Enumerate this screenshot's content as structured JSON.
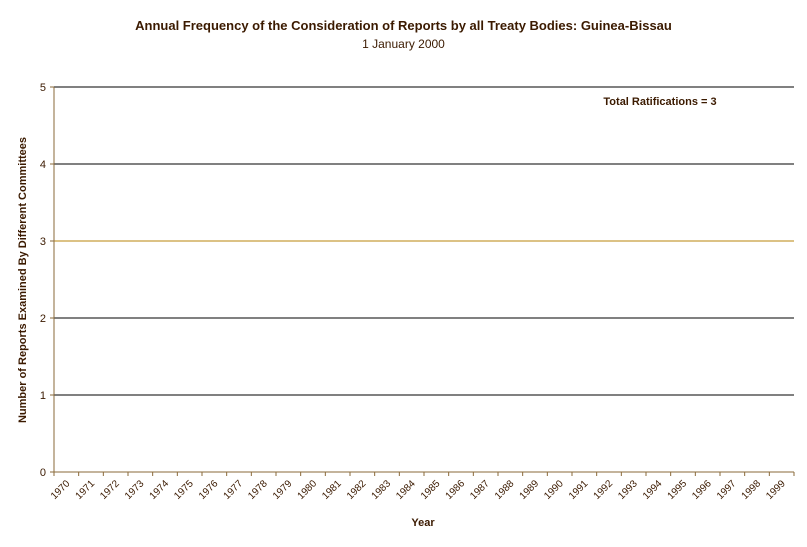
{
  "chart_data": {
    "type": "bar",
    "title": "Annual Frequency of the Consideration of Reports by all Treaty Bodies: Guinea-Bissau",
    "subtitle": "1 January 2000",
    "xlabel": "Year",
    "ylabel": "Number of Reports Examined By Different Committees",
    "categories": [
      "1970",
      "1971",
      "1972",
      "1973",
      "1974",
      "1975",
      "1976",
      "1977",
      "1978",
      "1979",
      "1980",
      "1981",
      "1982",
      "1983",
      "1984",
      "1985",
      "1986",
      "1987",
      "1988",
      "1989",
      "1990",
      "1991",
      "1992",
      "1993",
      "1994",
      "1995",
      "1996",
      "1997",
      "1998",
      "1999"
    ],
    "values": [
      0,
      0,
      0,
      0,
      0,
      0,
      0,
      0,
      0,
      0,
      0,
      0,
      0,
      0,
      0,
      0,
      0,
      0,
      0,
      0,
      0,
      0,
      0,
      0,
      0,
      0,
      0,
      0,
      0,
      0
    ],
    "ylim": [
      0,
      5
    ],
    "yticks": [
      "0",
      "1",
      "2",
      "3",
      "4",
      "5"
    ],
    "highlighted_gridline": 3,
    "grid": true,
    "annotation": "Total Ratifications = 3",
    "colors": {
      "text": "#3b1a00",
      "axis": "#8a6a3a",
      "gridline": "#000000",
      "highlight_gridline": "#b8860b"
    }
  }
}
